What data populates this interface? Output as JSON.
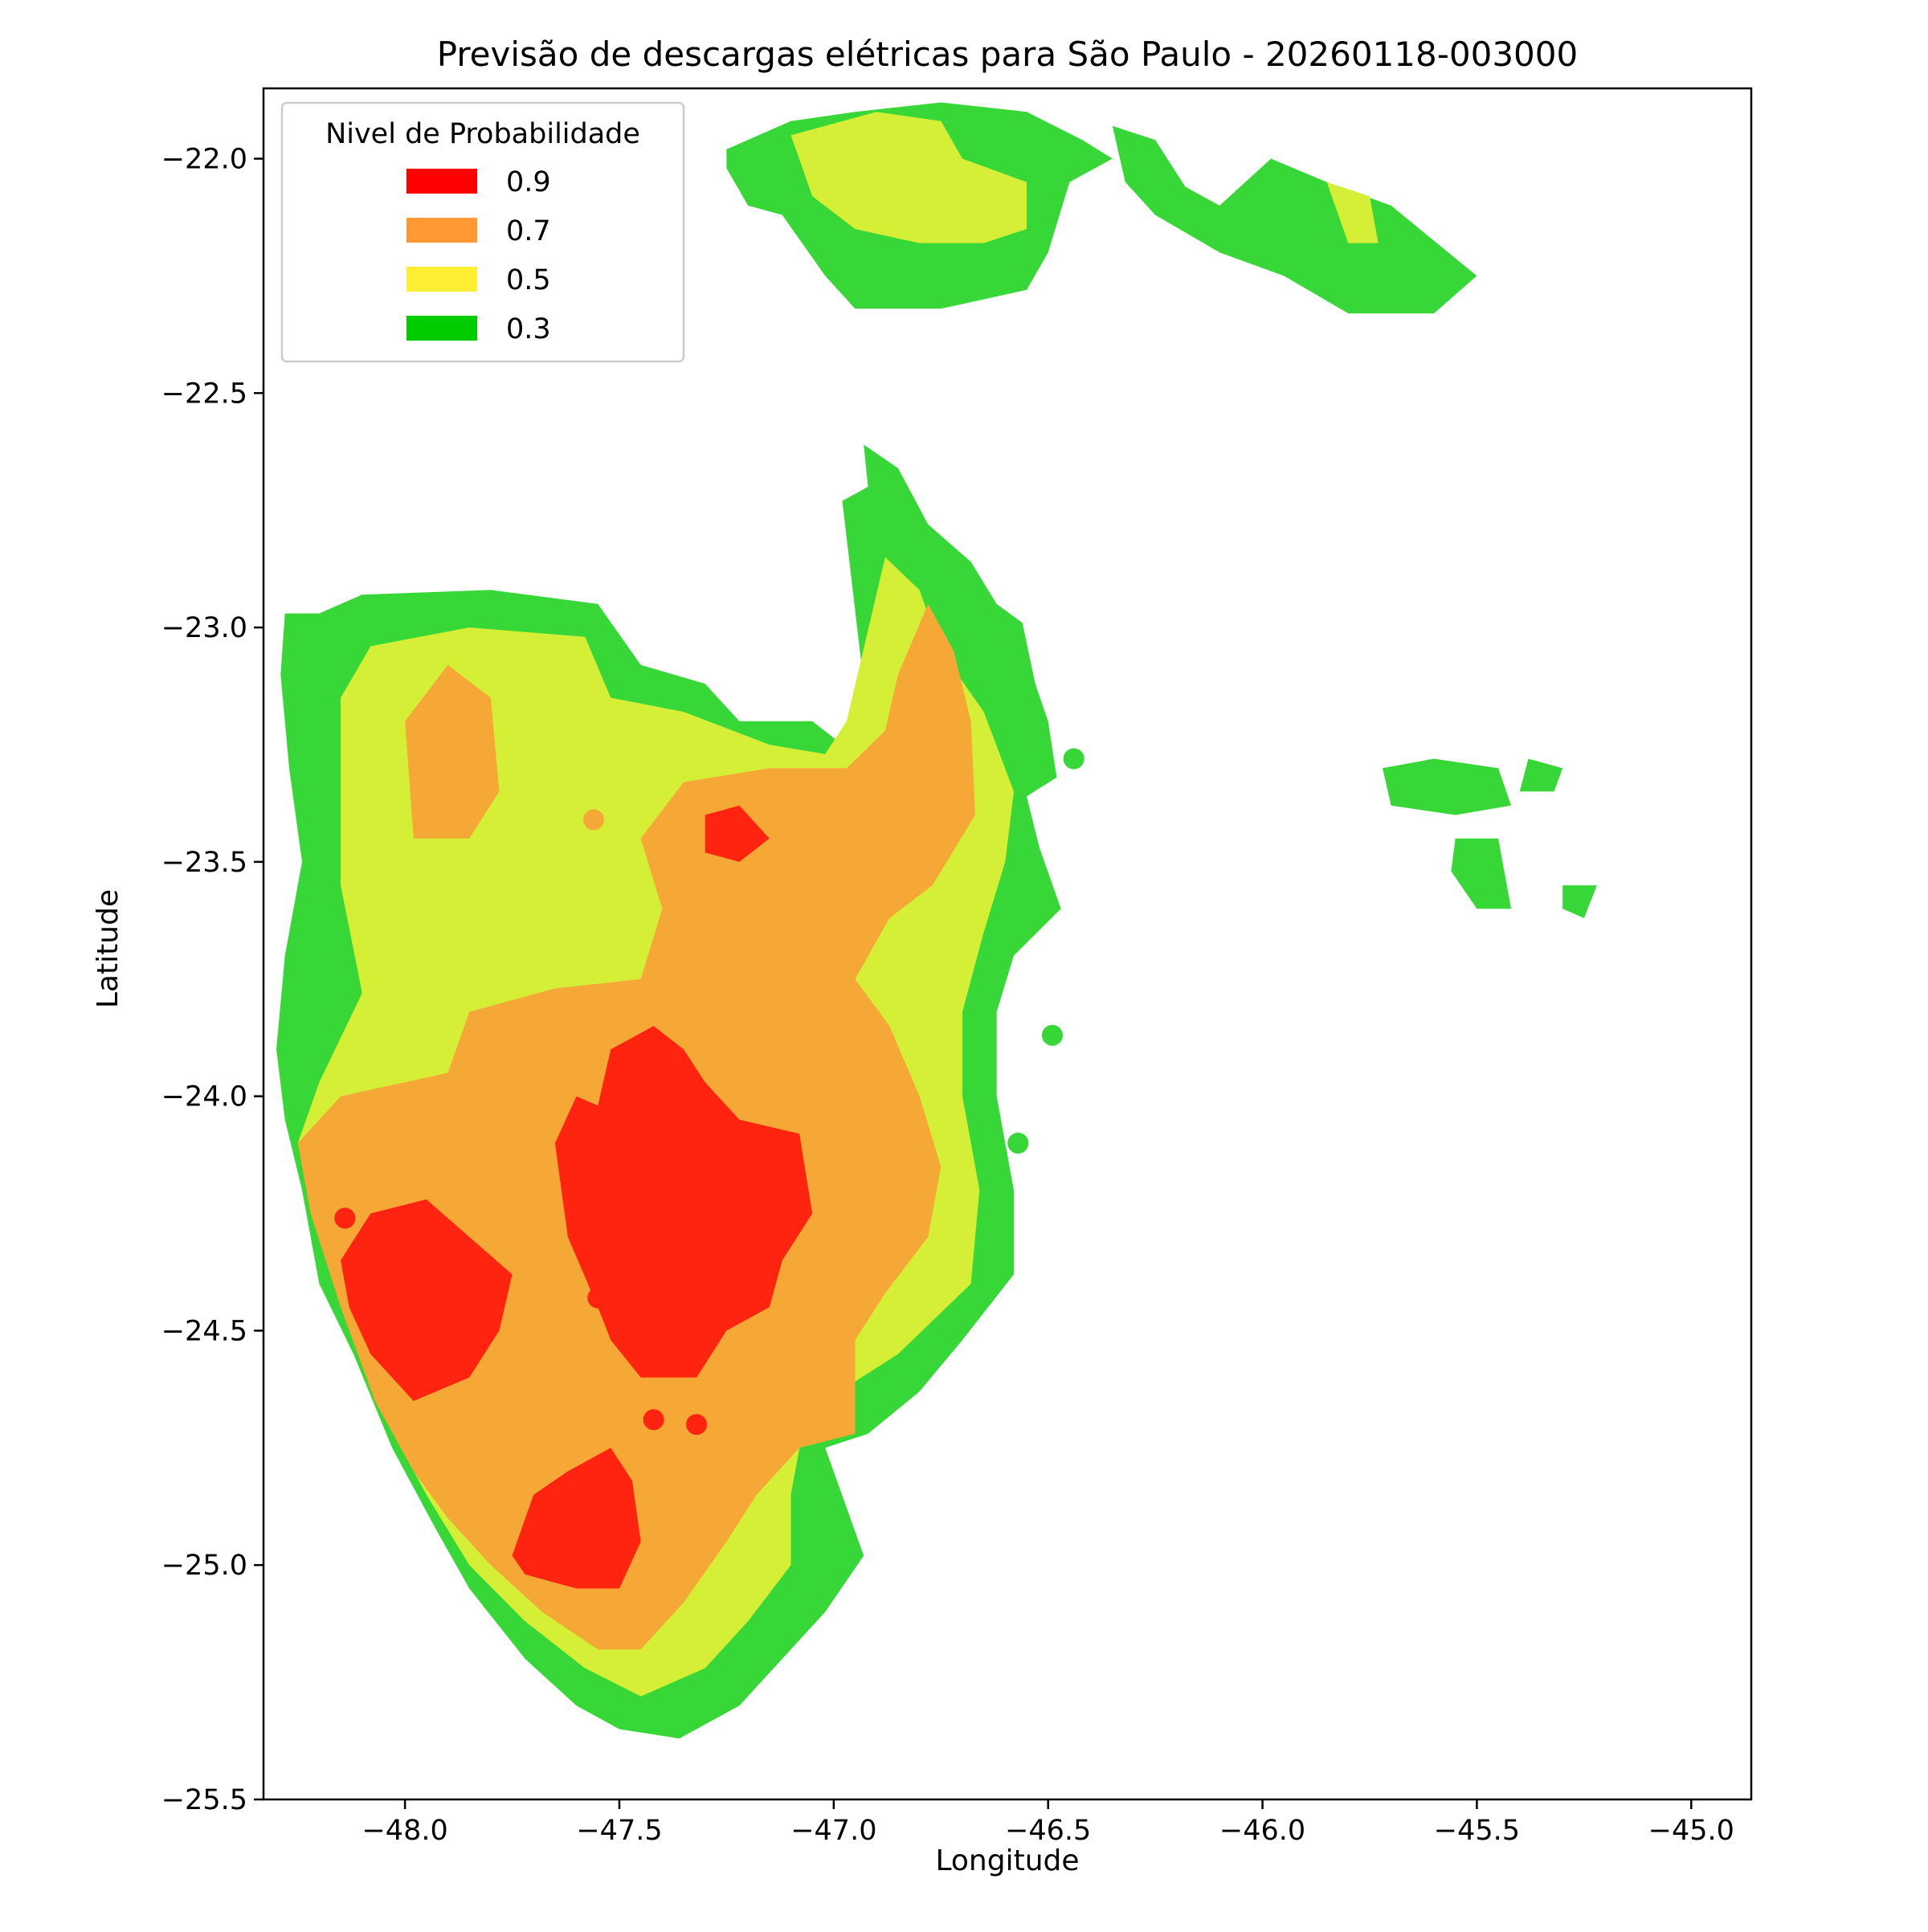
{
  "chart_data": {
    "type": "heatmap",
    "title": "Previsão de descargas elétricas para São Paulo - 20260118-003000",
    "xlabel": "Longitude",
    "ylabel": "Latitude",
    "xlim": [
      -48.33,
      -44.86
    ],
    "ylim": [
      -25.5,
      -21.85
    ],
    "xticks": [
      -48.0,
      -47.5,
      -47.0,
      -46.5,
      -46.0,
      -45.5,
      -45.0
    ],
    "yticks": [
      -22.0,
      -22.5,
      -23.0,
      -23.5,
      -24.0,
      -24.5,
      -25.0,
      -25.5
    ],
    "xtick_labels": [
      "−48.0",
      "−47.5",
      "−47.0",
      "−46.5",
      "−46.0",
      "−45.5",
      "−45.0"
    ],
    "ytick_labels": [
      "−22.0",
      "−22.5",
      "−23.0",
      "−23.5",
      "−24.0",
      "−24.5",
      "−25.0",
      "−25.5"
    ],
    "grid": false,
    "legend": {
      "title": "Nivel de Probabilidade",
      "placement": "top-left",
      "entries": [
        {
          "label": "0.9",
          "color": "#ff0000"
        },
        {
          "label": "0.7",
          "color": "#ff9933"
        },
        {
          "label": "0.5",
          "color": "#ffee33"
        },
        {
          "label": "0.3",
          "color": "#00cc00"
        }
      ]
    },
    "fill_colors": {
      "0.3": "#37d737",
      "0.5": "#d5ef37",
      "0.7": "#f5a836",
      "0.9": "#ff2410"
    },
    "regions": [
      {
        "level": "0.3",
        "points": [
          [
            -48.28,
            -22.97
          ],
          [
            -48.2,
            -22.97
          ],
          [
            -48.1,
            -22.93
          ],
          [
            -47.8,
            -22.92
          ],
          [
            -47.55,
            -22.95
          ],
          [
            -47.45,
            -23.08
          ],
          [
            -47.3,
            -23.12
          ],
          [
            -47.22,
            -23.2
          ],
          [
            -47.05,
            -23.2
          ],
          [
            -46.98,
            -23.25
          ],
          [
            -46.93,
            -23.12
          ],
          [
            -46.98,
            -22.73
          ],
          [
            -46.92,
            -22.7
          ],
          [
            -46.93,
            -22.61
          ],
          [
            -46.85,
            -22.66
          ],
          [
            -46.78,
            -22.78
          ],
          [
            -46.68,
            -22.86
          ],
          [
            -46.62,
            -22.95
          ],
          [
            -46.56,
            -22.99
          ],
          [
            -46.53,
            -23.12
          ],
          [
            -46.5,
            -23.2
          ],
          [
            -46.48,
            -23.32
          ],
          [
            -46.55,
            -23.36
          ],
          [
            -46.52,
            -23.47
          ],
          [
            -46.47,
            -23.6
          ],
          [
            -46.58,
            -23.7
          ],
          [
            -46.62,
            -23.82
          ],
          [
            -46.62,
            -24.0
          ],
          [
            -46.58,
            -24.2
          ],
          [
            -46.58,
            -24.38
          ],
          [
            -46.7,
            -24.52
          ],
          [
            -46.8,
            -24.63
          ],
          [
            -46.92,
            -24.72
          ],
          [
            -47.02,
            -24.75
          ],
          [
            -46.93,
            -24.98
          ],
          [
            -47.02,
            -25.1
          ],
          [
            -47.07,
            -25.15
          ],
          [
            -47.22,
            -25.3
          ],
          [
            -47.36,
            -25.37
          ],
          [
            -47.5,
            -25.35
          ],
          [
            -47.6,
            -25.3
          ],
          [
            -47.72,
            -25.2
          ],
          [
            -47.85,
            -25.05
          ],
          [
            -47.93,
            -24.92
          ],
          [
            -48.03,
            -24.75
          ],
          [
            -48.12,
            -24.55
          ],
          [
            -48.2,
            -24.4
          ],
          [
            -48.24,
            -24.2
          ],
          [
            -48.28,
            -24.05
          ],
          [
            -48.3,
            -23.9
          ],
          [
            -48.28,
            -23.7
          ],
          [
            -48.24,
            -23.5
          ],
          [
            -48.27,
            -23.3
          ],
          [
            -48.29,
            -23.1
          ]
        ]
      },
      {
        "level": "0.5",
        "points": [
          [
            -48.15,
            -23.15
          ],
          [
            -48.08,
            -23.04
          ],
          [
            -47.85,
            -23.0
          ],
          [
            -47.58,
            -23.02
          ],
          [
            -47.52,
            -23.15
          ],
          [
            -47.35,
            -23.18
          ],
          [
            -47.15,
            -23.25
          ],
          [
            -47.02,
            -23.27
          ],
          [
            -46.97,
            -23.2
          ],
          [
            -46.88,
            -22.85
          ],
          [
            -46.8,
            -22.92
          ],
          [
            -46.75,
            -23.05
          ],
          [
            -46.65,
            -23.18
          ],
          [
            -46.58,
            -23.35
          ],
          [
            -46.6,
            -23.5
          ],
          [
            -46.65,
            -23.65
          ],
          [
            -46.7,
            -23.82
          ],
          [
            -46.7,
            -24.0
          ],
          [
            -46.66,
            -24.2
          ],
          [
            -46.68,
            -24.4
          ],
          [
            -46.85,
            -24.55
          ],
          [
            -46.97,
            -24.62
          ],
          [
            -47.07,
            -24.7
          ],
          [
            -47.1,
            -24.85
          ],
          [
            -47.1,
            -25.0
          ],
          [
            -47.2,
            -25.12
          ],
          [
            -47.3,
            -25.22
          ],
          [
            -47.45,
            -25.28
          ],
          [
            -47.58,
            -25.22
          ],
          [
            -47.72,
            -25.12
          ],
          [
            -47.85,
            -25.0
          ],
          [
            -47.95,
            -24.85
          ],
          [
            -48.05,
            -24.68
          ],
          [
            -48.12,
            -24.5
          ],
          [
            -48.2,
            -24.3
          ],
          [
            -48.25,
            -24.1
          ],
          [
            -48.2,
            -23.97
          ],
          [
            -48.1,
            -23.78
          ],
          [
            -48.15,
            -23.55
          ],
          [
            -48.15,
            -23.35
          ]
        ]
      },
      {
        "level": "0.7",
        "points": [
          [
            -48.25,
            -24.1
          ],
          [
            -48.15,
            -24.0
          ],
          [
            -47.9,
            -23.95
          ],
          [
            -47.85,
            -23.82
          ],
          [
            -47.65,
            -23.77
          ],
          [
            -47.45,
            -23.75
          ],
          [
            -47.4,
            -23.6
          ],
          [
            -47.45,
            -23.45
          ],
          [
            -47.35,
            -23.33
          ],
          [
            -47.15,
            -23.3
          ],
          [
            -46.97,
            -23.3
          ],
          [
            -46.88,
            -23.22
          ],
          [
            -46.85,
            -23.1
          ],
          [
            -46.78,
            -22.95
          ],
          [
            -46.72,
            -23.05
          ],
          [
            -46.68,
            -23.2
          ],
          [
            -46.67,
            -23.4
          ],
          [
            -46.77,
            -23.55
          ],
          [
            -46.87,
            -23.62
          ],
          [
            -46.95,
            -23.75
          ],
          [
            -46.87,
            -23.85
          ],
          [
            -46.8,
            -24.0
          ],
          [
            -46.75,
            -24.15
          ],
          [
            -46.78,
            -24.3
          ],
          [
            -46.88,
            -24.42
          ],
          [
            -46.95,
            -24.52
          ],
          [
            -46.95,
            -24.72
          ],
          [
            -47.08,
            -24.75
          ],
          [
            -47.18,
            -24.85
          ],
          [
            -47.25,
            -24.95
          ],
          [
            -47.35,
            -25.08
          ],
          [
            -47.45,
            -25.18
          ],
          [
            -47.55,
            -25.18
          ],
          [
            -47.68,
            -25.1
          ],
          [
            -47.8,
            -25.0
          ],
          [
            -47.9,
            -24.9
          ],
          [
            -47.98,
            -24.8
          ],
          [
            -48.07,
            -24.65
          ],
          [
            -48.15,
            -24.45
          ],
          [
            -48.22,
            -24.25
          ]
        ]
      },
      {
        "level": "0.5",
        "points": [
          [
            -48.0,
            -23.6
          ],
          [
            -47.85,
            -23.55
          ],
          [
            -47.72,
            -23.53
          ],
          [
            -47.65,
            -23.58
          ],
          [
            -47.72,
            -23.72
          ],
          [
            -47.85,
            -23.7
          ],
          [
            -48.0,
            -23.7
          ]
        ]
      },
      {
        "level": "0.7",
        "points": [
          [
            -48.0,
            -23.2
          ],
          [
            -47.9,
            -23.08
          ],
          [
            -47.8,
            -23.15
          ],
          [
            -47.78,
            -23.35
          ],
          [
            -47.85,
            -23.45
          ],
          [
            -47.98,
            -23.45
          ]
        ]
      },
      {
        "level": "0.9",
        "points": [
          [
            -47.52,
            -23.9
          ],
          [
            -47.42,
            -23.85
          ],
          [
            -47.35,
            -23.9
          ],
          [
            -47.3,
            -23.97
          ],
          [
            -47.22,
            -24.05
          ],
          [
            -47.08,
            -24.08
          ],
          [
            -47.05,
            -24.25
          ],
          [
            -47.12,
            -24.35
          ],
          [
            -47.15,
            -24.45
          ],
          [
            -47.25,
            -24.5
          ],
          [
            -47.32,
            -24.6
          ],
          [
            -47.45,
            -24.6
          ],
          [
            -47.52,
            -24.52
          ],
          [
            -47.55,
            -24.45
          ],
          [
            -47.62,
            -24.3
          ],
          [
            -47.65,
            -24.1
          ],
          [
            -47.6,
            -24.0
          ],
          [
            -47.55,
            -24.02
          ]
        ]
      },
      {
        "level": "0.9",
        "points": [
          [
            -48.15,
            -24.35
          ],
          [
            -48.08,
            -24.25
          ],
          [
            -47.95,
            -24.22
          ],
          [
            -47.85,
            -24.3
          ],
          [
            -47.75,
            -24.38
          ],
          [
            -47.78,
            -24.5
          ],
          [
            -47.85,
            -24.6
          ],
          [
            -47.98,
            -24.65
          ],
          [
            -48.08,
            -24.55
          ],
          [
            -48.13,
            -24.45
          ]
        ]
      },
      {
        "level": "0.9",
        "points": [
          [
            -47.75,
            -24.98
          ],
          [
            -47.7,
            -24.85
          ],
          [
            -47.62,
            -24.8
          ],
          [
            -47.52,
            -24.75
          ],
          [
            -47.47,
            -24.82
          ],
          [
            -47.45,
            -24.95
          ],
          [
            -47.5,
            -25.05
          ],
          [
            -47.6,
            -25.05
          ],
          [
            -47.72,
            -25.02
          ]
        ]
      },
      {
        "level": "0.9",
        "points": [
          [
            -47.3,
            -23.4
          ],
          [
            -47.22,
            -23.38
          ],
          [
            -47.15,
            -23.45
          ],
          [
            -47.22,
            -23.5
          ],
          [
            -47.3,
            -23.48
          ]
        ]
      },
      {
        "level": "0.3",
        "points": [
          [
            -47.25,
            -21.98
          ],
          [
            -47.1,
            -21.92
          ],
          [
            -46.95,
            -21.9
          ],
          [
            -46.75,
            -21.88
          ],
          [
            -46.55,
            -21.9
          ],
          [
            -46.42,
            -21.96
          ],
          [
            -46.35,
            -22.0
          ],
          [
            -46.45,
            -22.05
          ],
          [
            -46.5,
            -22.2
          ],
          [
            -46.55,
            -22.28
          ],
          [
            -46.75,
            -22.32
          ],
          [
            -46.95,
            -22.32
          ],
          [
            -47.02,
            -22.25
          ],
          [
            -47.12,
            -22.12
          ],
          [
            -47.2,
            -22.1
          ],
          [
            -47.25,
            -22.02
          ]
        ]
      },
      {
        "level": "0.5",
        "points": [
          [
            -47.1,
            -21.95
          ],
          [
            -46.9,
            -21.9
          ],
          [
            -46.75,
            -21.92
          ],
          [
            -46.7,
            -22.0
          ],
          [
            -46.55,
            -22.05
          ],
          [
            -46.55,
            -22.15
          ],
          [
            -46.65,
            -22.18
          ],
          [
            -46.8,
            -22.18
          ],
          [
            -46.95,
            -22.15
          ],
          [
            -47.05,
            -22.08
          ]
        ]
      },
      {
        "level": "0.3",
        "points": [
          [
            -46.35,
            -21.93
          ],
          [
            -46.25,
            -21.96
          ],
          [
            -46.18,
            -22.06
          ],
          [
            -46.1,
            -22.1
          ],
          [
            -45.98,
            -22.0
          ],
          [
            -45.85,
            -22.05
          ],
          [
            -45.7,
            -22.1
          ],
          [
            -45.5,
            -22.25
          ],
          [
            -45.6,
            -22.33
          ],
          [
            -45.8,
            -22.33
          ],
          [
            -45.95,
            -22.25
          ],
          [
            -46.1,
            -22.2
          ],
          [
            -46.25,
            -22.12
          ],
          [
            -46.32,
            -22.05
          ]
        ]
      },
      {
        "level": "0.5",
        "points": [
          [
            -45.85,
            -22.05
          ],
          [
            -45.75,
            -22.08
          ],
          [
            -45.73,
            -22.18
          ],
          [
            -45.8,
            -22.18
          ]
        ]
      },
      {
        "level": "0.3",
        "points": [
          [
            -45.72,
            -23.3
          ],
          [
            -45.6,
            -23.28
          ],
          [
            -45.45,
            -23.3
          ],
          [
            -45.42,
            -23.38
          ],
          [
            -45.55,
            -23.4
          ],
          [
            -45.7,
            -23.38
          ]
        ]
      },
      {
        "level": "0.3",
        "points": [
          [
            -45.38,
            -23.28
          ],
          [
            -45.3,
            -23.3
          ],
          [
            -45.32,
            -23.35
          ],
          [
            -45.4,
            -23.35
          ]
        ]
      },
      {
        "level": "0.3",
        "points": [
          [
            -45.55,
            -23.45
          ],
          [
            -45.45,
            -23.45
          ],
          [
            -45.42,
            -23.6
          ],
          [
            -45.5,
            -23.6
          ],
          [
            -45.56,
            -23.52
          ]
        ]
      },
      {
        "level": "0.3",
        "points": [
          [
            -45.3,
            -23.55
          ],
          [
            -45.22,
            -23.55
          ],
          [
            -45.25,
            -23.62
          ],
          [
            -45.3,
            -23.6
          ]
        ]
      }
    ],
    "points": [
      {
        "x": -48.14,
        "y": -24.26,
        "level": "0.9"
      },
      {
        "x": -47.55,
        "y": -24.43,
        "level": "0.9"
      },
      {
        "x": -47.42,
        "y": -24.43,
        "level": "0.9"
      },
      {
        "x": -47.42,
        "y": -24.69,
        "level": "0.9"
      },
      {
        "x": -47.32,
        "y": -24.7,
        "level": "0.9"
      },
      {
        "x": -47.56,
        "y": -23.41,
        "level": "0.7"
      },
      {
        "x": -46.87,
        "y": -22.95,
        "level": "0.5"
      },
      {
        "x": -46.69,
        "y": -22.15,
        "level": "0.5"
      },
      {
        "x": -45.73,
        "y": -22.25,
        "level": "0.3"
      },
      {
        "x": -46.44,
        "y": -23.28,
        "level": "0.3"
      },
      {
        "x": -46.49,
        "y": -23.87,
        "level": "0.3"
      },
      {
        "x": -46.57,
        "y": -24.1,
        "level": "0.3"
      }
    ]
  }
}
